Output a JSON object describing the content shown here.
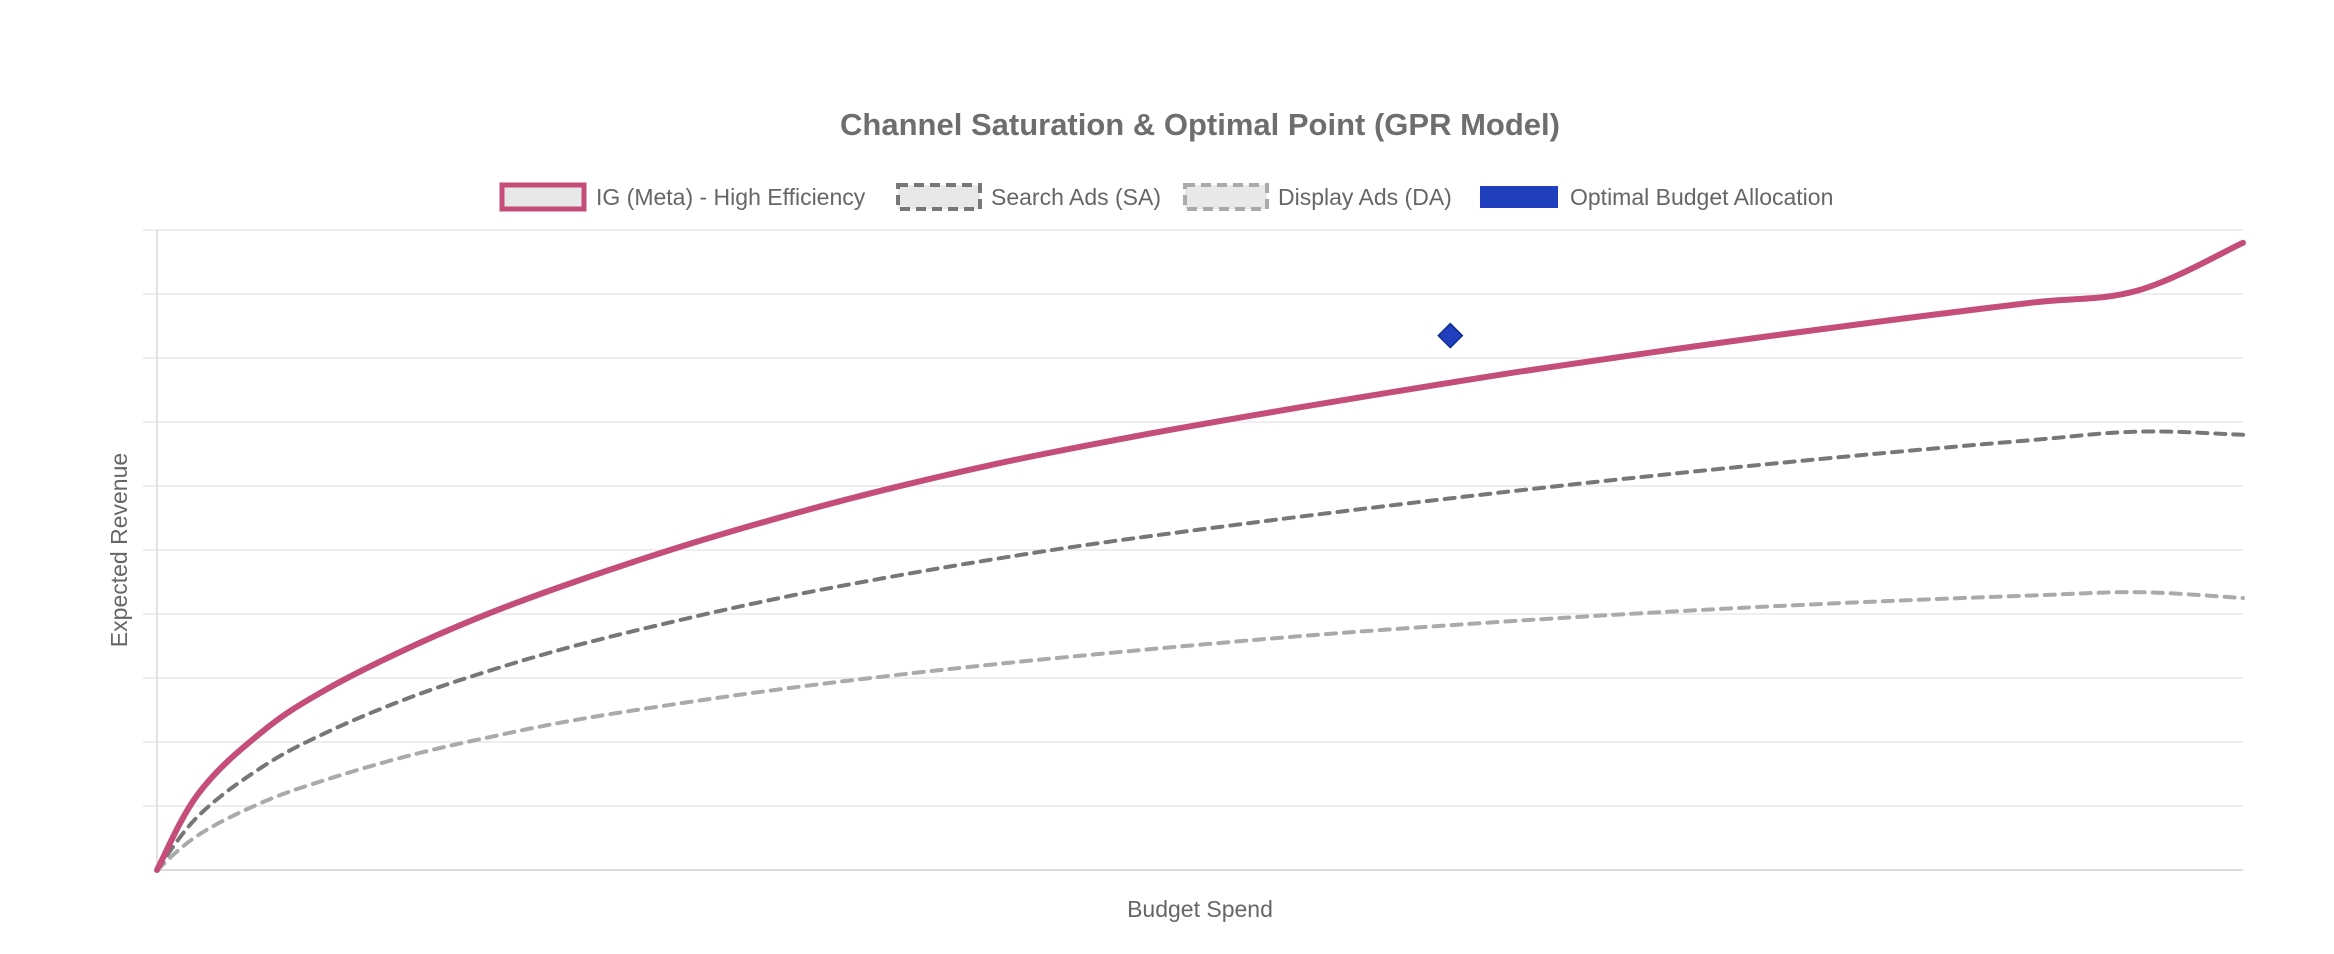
{
  "chart_data": {
    "type": "line",
    "title": "Channel Saturation & Optimal Point (GPR Model)",
    "xlabel": "Budget Spend",
    "ylabel": "Expected Revenue",
    "grid": true,
    "tick_labels_visible": false,
    "legend_position": "top",
    "xlim": [
      0,
      100
    ],
    "ylim": [
      0,
      100
    ],
    "series": [
      {
        "name": "IG (Meta) - High Efficiency",
        "color": "#c44e79",
        "style": "solid",
        "x": [
          0,
          2,
          5,
          8,
          12,
          16,
          20,
          25,
          30,
          35,
          40,
          45,
          50,
          55,
          60,
          65,
          70,
          75,
          80,
          85,
          90,
          95,
          100
        ],
        "y": [
          0,
          12.0,
          21.5,
          28.0,
          34.6,
          40.2,
          45.0,
          50.4,
          55.2,
          59.5,
          63.3,
          66.6,
          69.6,
          72.4,
          75.1,
          77.7,
          80.1,
          82.4,
          84.6,
          86.7,
          88.7,
          90.6,
          98.0
        ]
      },
      {
        "name": "Search Ads (SA)",
        "color": "#777777",
        "style": "dashed",
        "x": [
          0,
          2,
          5,
          8,
          12,
          16,
          20,
          25,
          30,
          35,
          40,
          45,
          50,
          55,
          60,
          65,
          70,
          75,
          80,
          85,
          90,
          95,
          100
        ],
        "y": [
          0,
          8.5,
          16.0,
          21.3,
          26.8,
          31.2,
          35.0,
          39.0,
          42.6,
          45.7,
          48.5,
          51.0,
          53.2,
          55.3,
          57.3,
          59.2,
          61.0,
          62.7,
          64.3,
          65.8,
          67.2,
          68.5,
          68.0
        ]
      },
      {
        "name": "Display Ads (DA)",
        "color": "#aaaaaa",
        "style": "dashed",
        "x": [
          0,
          2,
          5,
          8,
          12,
          16,
          20,
          25,
          30,
          35,
          40,
          45,
          50,
          55,
          60,
          65,
          70,
          75,
          80,
          85,
          90,
          95,
          100
        ],
        "y": [
          0,
          5.5,
          10.5,
          14.0,
          17.8,
          20.8,
          23.4,
          26.0,
          28.3,
          30.3,
          32.1,
          33.7,
          35.2,
          36.6,
          37.8,
          38.9,
          39.9,
          40.8,
          41.6,
          42.3,
          42.9,
          43.4,
          42.5
        ]
      },
      {
        "name": "Optimal Budget Allocation",
        "color": "#1f3fbf",
        "style": "marker-diamond",
        "x": [
          62
        ],
        "y": [
          83.5
        ]
      }
    ]
  }
}
